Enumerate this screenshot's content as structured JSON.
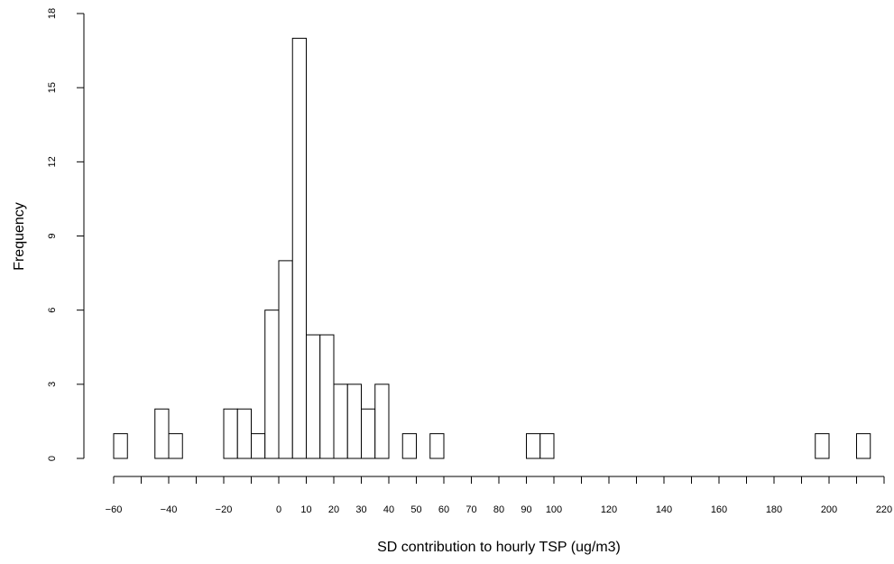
{
  "chart_data": {
    "type": "bar",
    "title": "",
    "xlabel": "SD contribution to hourly TSP (ug/m3)",
    "ylabel": "Frequency",
    "xlim": [
      -60,
      220
    ],
    "ylim": [
      0,
      18
    ],
    "grid": false,
    "bin_width": 5,
    "bins": [
      {
        "x0": -60,
        "x1": -55,
        "count": 1
      },
      {
        "x0": -45,
        "x1": -40,
        "count": 2
      },
      {
        "x0": -40,
        "x1": -35,
        "count": 1
      },
      {
        "x0": -20,
        "x1": -15,
        "count": 2
      },
      {
        "x0": -15,
        "x1": -10,
        "count": 2
      },
      {
        "x0": -10,
        "x1": -5,
        "count": 1
      },
      {
        "x0": -5,
        "x1": 0,
        "count": 6
      },
      {
        "x0": 0,
        "x1": 5,
        "count": 8
      },
      {
        "x0": 5,
        "x1": 10,
        "count": 17
      },
      {
        "x0": 10,
        "x1": 15,
        "count": 5
      },
      {
        "x0": 15,
        "x1": 20,
        "count": 5
      },
      {
        "x0": 20,
        "x1": 25,
        "count": 3
      },
      {
        "x0": 25,
        "x1": 30,
        "count": 3
      },
      {
        "x0": 30,
        "x1": 35,
        "count": 2
      },
      {
        "x0": 35,
        "x1": 40,
        "count": 3
      },
      {
        "x0": 45,
        "x1": 50,
        "count": 1
      },
      {
        "x0": 55,
        "x1": 60,
        "count": 1
      },
      {
        "x0": 90,
        "x1": 95,
        "count": 1
      },
      {
        "x0": 95,
        "x1": 100,
        "count": 1
      },
      {
        "x0": 195,
        "x1": 200,
        "count": 1
      },
      {
        "x0": 210,
        "x1": 215,
        "count": 1
      }
    ],
    "xticks": [
      {
        "value": -60,
        "label": "−60"
      },
      {
        "value": -50,
        "label": ""
      },
      {
        "value": -40,
        "label": "−40"
      },
      {
        "value": -30,
        "label": ""
      },
      {
        "value": -20,
        "label": "−20"
      },
      {
        "value": -10,
        "label": ""
      },
      {
        "value": 0,
        "label": "0"
      },
      {
        "value": 10,
        "label": "10"
      },
      {
        "value": 20,
        "label": "20"
      },
      {
        "value": 30,
        "label": "30"
      },
      {
        "value": 40,
        "label": "40"
      },
      {
        "value": 50,
        "label": "50"
      },
      {
        "value": 60,
        "label": "60"
      },
      {
        "value": 70,
        "label": "70"
      },
      {
        "value": 80,
        "label": "80"
      },
      {
        "value": 90,
        "label": "90"
      },
      {
        "value": 100,
        "label": "100"
      },
      {
        "value": 110,
        "label": ""
      },
      {
        "value": 120,
        "label": "120"
      },
      {
        "value": 130,
        "label": ""
      },
      {
        "value": 140,
        "label": "140"
      },
      {
        "value": 150,
        "label": ""
      },
      {
        "value": 160,
        "label": "160"
      },
      {
        "value": 170,
        "label": ""
      },
      {
        "value": 180,
        "label": "180"
      },
      {
        "value": 190,
        "label": ""
      },
      {
        "value": 200,
        "label": "200"
      },
      {
        "value": 210,
        "label": ""
      },
      {
        "value": 220,
        "label": "220"
      }
    ],
    "yticks": [
      {
        "value": 0,
        "label": "0"
      },
      {
        "value": 3,
        "label": "3"
      },
      {
        "value": 6,
        "label": "6"
      },
      {
        "value": 9,
        "label": "9"
      },
      {
        "value": 12,
        "label": "12"
      },
      {
        "value": 15,
        "label": "15"
      },
      {
        "value": 18,
        "label": "18"
      }
    ]
  }
}
